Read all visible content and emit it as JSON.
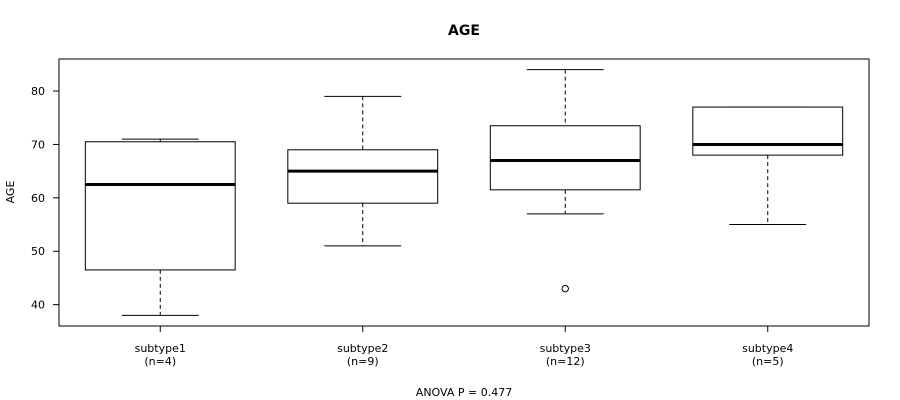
{
  "chart_data": {
    "type": "box",
    "title": "AGE",
    "ylabel": "AGE",
    "xlabel": "",
    "footer": "ANOVA P = 0.477",
    "ylim": [
      36,
      86
    ],
    "yticks": [
      40,
      50,
      60,
      70,
      80
    ],
    "grid": false,
    "series": [
      {
        "category": "subtype1",
        "count_label": "(n=4)",
        "min": 38,
        "q1": 46.5,
        "median": 62.5,
        "q3": 70.5,
        "max": 71,
        "outliers": []
      },
      {
        "category": "subtype2",
        "count_label": "(n=9)",
        "min": 51,
        "q1": 59,
        "median": 65,
        "q3": 69,
        "max": 79,
        "outliers": []
      },
      {
        "category": "subtype3",
        "count_label": "(n=12)",
        "min": 57,
        "q1": 61.5,
        "median": 67,
        "q3": 73.5,
        "max": 84,
        "outliers": [
          43
        ]
      },
      {
        "category": "subtype4",
        "count_label": "(n=5)",
        "min": 55,
        "q1": 68,
        "median": 70,
        "q3": 77,
        "max": 77,
        "outliers": []
      }
    ]
  }
}
